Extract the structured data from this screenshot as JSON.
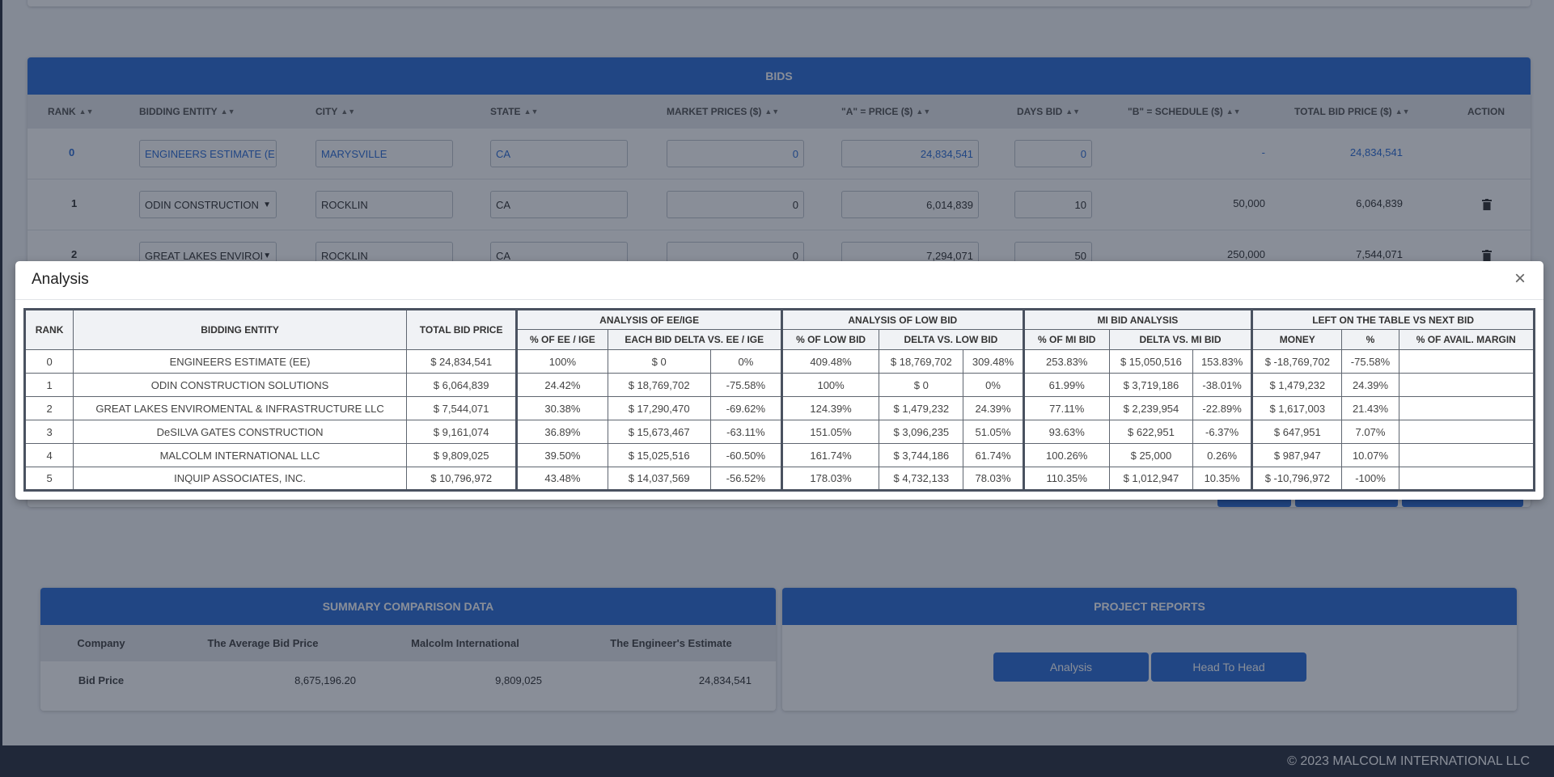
{
  "bids": {
    "title": "BIDS",
    "columns": [
      "RANK",
      "BIDDING ENTITY",
      "CITY",
      "STATE",
      "MARKET PRICES ($)",
      "\"A\" = PRICE ($)",
      "DAYS BID",
      "\"B\" = SCHEDULE ($)",
      "TOTAL BID PRICE ($)",
      "ACTION"
    ],
    "rows": [
      {
        "rank": "0",
        "entity": "ENGINEERS ESTIMATE (EE",
        "city": "MARYSVILLE",
        "state": "CA",
        "market": "0",
        "price_a": "24,834,541",
        "days": "0",
        "schedule_b": "-",
        "total": "24,834,541"
      },
      {
        "rank": "1",
        "entity": "ODIN CONSTRUCTION",
        "city": "ROCKLIN",
        "state": "CA",
        "market": "0",
        "price_a": "6,014,839",
        "days": "10",
        "schedule_b": "50,000",
        "total": "6,064,839"
      },
      {
        "rank": "2",
        "entity": "GREAT LAKES ENVIROI",
        "city": "ROCKLIN",
        "state": "CA",
        "market": "0",
        "price_a": "7,294,071",
        "days": "50",
        "schedule_b": "250,000",
        "total": "7,544,071"
      }
    ]
  },
  "summary": {
    "title": "SUMMARY COMPARISON DATA",
    "columns": [
      "Company",
      "The Average Bid Price",
      "Malcolm International",
      "The Engineer's Estimate"
    ],
    "row": {
      "label": "Bid Price",
      "average": "8,675,196.20",
      "malcolm": "9,809,025",
      "engineer": "24,834,541"
    }
  },
  "reports": {
    "title": "PROJECT REPORTS",
    "analysis_label": "Analysis",
    "head_to_head_label": "Head To Head"
  },
  "footer": {
    "copyright": "© 2023 MALCOLM INTERNATIONAL LLC"
  },
  "modal": {
    "title": "Analysis",
    "close": "×",
    "groups": {
      "rank": "RANK",
      "entity": "BIDDING ENTITY",
      "total": "TOTAL BID PRICE",
      "ee": "ANALYSIS OF EE/IGE",
      "low": "ANALYSIS OF LOW BID",
      "mi": "MI BID ANALYSIS",
      "left": "LEFT ON THE TABLE VS NEXT BID"
    },
    "subheaders": {
      "pct_ee": "% OF EE / IGE",
      "delta_ee": "EACH BID DELTA VS. EE / IGE",
      "pct_low": "% OF LOW BID",
      "delta_low": "DELTA VS. LOW BID",
      "pct_mi": "% OF MI BID",
      "delta_mi": "DELTA VS. MI BID",
      "money": "MONEY",
      "pct": "%",
      "margin": "% OF AVAIL. MARGIN"
    },
    "rows": [
      {
        "rank": "0",
        "entity": "ENGINEERS ESTIMATE (EE)",
        "total": "$ 24,834,541",
        "pct_ee": "100%",
        "delta_ee": "$ 0",
        "delta_ee_pct": "0%",
        "pct_low": "409.48%",
        "delta_low": "$ 18,769,702",
        "delta_low_pct": "309.48%",
        "pct_mi": "253.83%",
        "delta_mi": "$ 15,050,516",
        "delta_mi_pct": "153.83%",
        "money": "$ -18,769,702",
        "pct": "-75.58%",
        "margin": ""
      },
      {
        "rank": "1",
        "entity": "ODIN CONSTRUCTION SOLUTIONS",
        "total": "$ 6,064,839",
        "pct_ee": "24.42%",
        "delta_ee": "$ 18,769,702",
        "delta_ee_pct": "-75.58%",
        "pct_low": "100%",
        "delta_low": "$ 0",
        "delta_low_pct": "0%",
        "pct_mi": "61.99%",
        "delta_mi": "$ 3,719,186",
        "delta_mi_pct": "-38.01%",
        "money": "$ 1,479,232",
        "pct": "24.39%",
        "margin": ""
      },
      {
        "rank": "2",
        "entity": "GREAT LAKES ENVIROMENTAL & INFRASTRUCTURE LLC",
        "total": "$ 7,544,071",
        "pct_ee": "30.38%",
        "delta_ee": "$ 17,290,470",
        "delta_ee_pct": "-69.62%",
        "pct_low": "124.39%",
        "delta_low": "$ 1,479,232",
        "delta_low_pct": "24.39%",
        "pct_mi": "77.11%",
        "delta_mi": "$ 2,239,954",
        "delta_mi_pct": "-22.89%",
        "money": "$ 1,617,003",
        "pct": "21.43%",
        "margin": ""
      },
      {
        "rank": "3",
        "entity": "DeSILVA GATES CONSTRUCTION",
        "total": "$ 9,161,074",
        "pct_ee": "36.89%",
        "delta_ee": "$ 15,673,467",
        "delta_ee_pct": "-63.11%",
        "pct_low": "151.05%",
        "delta_low": "$ 3,096,235",
        "delta_low_pct": "51.05%",
        "pct_mi": "93.63%",
        "delta_mi": "$ 622,951",
        "delta_mi_pct": "-6.37%",
        "money": "$ 647,951",
        "pct": "7.07%",
        "margin": ""
      },
      {
        "rank": "4",
        "entity": "MALCOLM INTERNATIONAL LLC",
        "total": "$ 9,809,025",
        "pct_ee": "39.50%",
        "delta_ee": "$ 15,025,516",
        "delta_ee_pct": "-60.50%",
        "pct_low": "161.74%",
        "delta_low": "$ 3,744,186",
        "delta_low_pct": "61.74%",
        "pct_mi": "100.26%",
        "delta_mi": "$ 25,000",
        "delta_mi_pct": "0.26%",
        "money": "$ 987,947",
        "pct": "10.07%",
        "margin": ""
      },
      {
        "rank": "5",
        "entity": "INQUIP ASSOCIATES, INC.",
        "total": "$ 10,796,972",
        "pct_ee": "43.48%",
        "delta_ee": "$ 14,037,569",
        "delta_ee_pct": "-56.52%",
        "pct_low": "178.03%",
        "delta_low": "$ 4,732,133",
        "delta_low_pct": "78.03%",
        "pct_mi": "110.35%",
        "delta_mi": "$ 1,012,947",
        "delta_mi_pct": "10.35%",
        "money": "$ -10,796,972",
        "pct": "-100%",
        "margin": ""
      }
    ]
  }
}
